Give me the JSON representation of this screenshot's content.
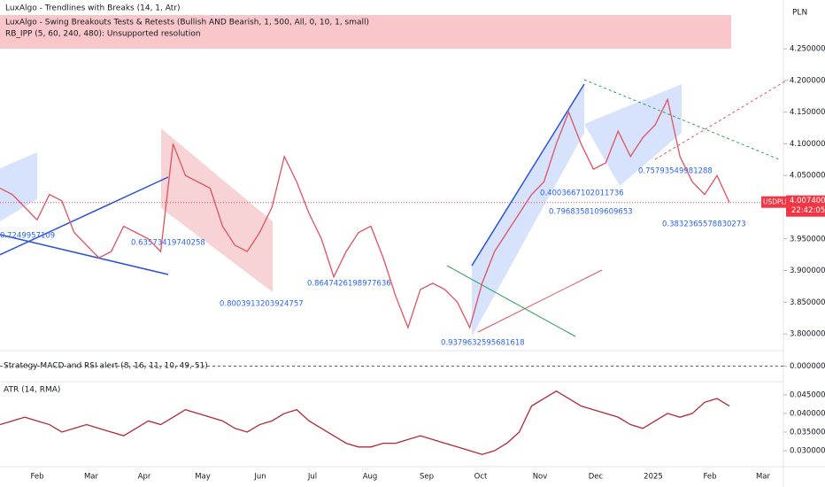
{
  "indicators": [
    "LuxAlgo - Trendlines with Breaks (14, 1, Atr)",
    "LuxAlgo - Swing Breakouts Tests & Retests (Bullish AND Bearish, 1, 500, All, 0, 10, 1, small)",
    "RB_IPP (5, 60, 240, 480): Unsupported resolution"
  ],
  "currency": "PLN",
  "symbol": "USDPLN",
  "countdown": "22:42:05",
  "time_axis": [
    "Feb",
    "Mar",
    "Apr",
    "May",
    "Jun",
    "Jul",
    "Aug",
    "Sep",
    "Oct",
    "Nov",
    "Dec",
    "2025",
    "Feb",
    "Mar"
  ],
  "annotations": [
    "0.7249957109",
    "0.63573419740258",
    "0.8003913203924757",
    "0.8647426198977636",
    "0.9379632595681618",
    "0.4003667102011736",
    "0.7968358109609653",
    "0.75793549981288",
    "0.3832365578830273"
  ],
  "chart_data": [
    {
      "type": "line",
      "color": "#e05260",
      "ylim": [
        3.775,
        4.327
      ],
      "yticks": [
        {
          "value": 4.25,
          "label": "4.250000"
        },
        {
          "value": 4.2,
          "label": "4.200000"
        },
        {
          "value": 4.15,
          "label": "4.150000"
        },
        {
          "value": 4.1,
          "label": "4.100000"
        },
        {
          "value": 4.05,
          "label": "4.050000"
        },
        {
          "value": 3.95,
          "label": "3.950000"
        },
        {
          "value": 3.9,
          "label": "3.900000"
        },
        {
          "value": 3.85,
          "label": "3.850000"
        },
        {
          "value": 3.8,
          "label": "3.800000"
        }
      ],
      "last_price": {
        "value": 4.0074,
        "label": "4.007400"
      },
      "values": [
        4.03,
        4.02,
        4.0,
        3.98,
        4.02,
        4.01,
        3.96,
        3.94,
        3.92,
        3.93,
        3.97,
        3.96,
        3.95,
        3.93,
        4.1,
        4.05,
        4.04,
        4.03,
        3.97,
        3.94,
        3.93,
        3.96,
        4.0,
        4.08,
        4.04,
        3.99,
        3.95,
        3.89,
        3.93,
        3.96,
        3.97,
        3.92,
        3.86,
        3.81,
        3.87,
        3.88,
        3.87,
        3.85,
        3.81,
        3.88,
        3.93,
        3.96,
        3.99,
        4.02,
        4.04,
        4.1,
        4.15,
        4.1,
        4.06,
        4.07,
        4.12,
        4.08,
        4.11,
        4.13,
        4.17,
        4.08,
        4.04,
        4.02,
        4.05,
        4.0074
      ]
    },
    {
      "type": "line",
      "title": "Strategy MACD and RSI alert (8, 16, 11, 10, 49, 51)",
      "ylim": [
        -0.01,
        0.01
      ],
      "yticks": [
        {
          "value": 0,
          "label": "0.000000"
        }
      ]
    },
    {
      "type": "line",
      "title": "ATR (14, RMA)",
      "color": "#b22833",
      "ylim": [
        0.0262,
        0.0483
      ],
      "yticks": [
        {
          "value": 0.045,
          "label": "0.045000"
        },
        {
          "value": 0.04,
          "label": "0.040000"
        },
        {
          "value": 0.035,
          "label": "0.035000"
        },
        {
          "value": 0.03,
          "label": "0.030000"
        }
      ],
      "values": [
        0.037,
        0.038,
        0.039,
        0.038,
        0.037,
        0.035,
        0.036,
        0.037,
        0.036,
        0.035,
        0.034,
        0.036,
        0.038,
        0.037,
        0.039,
        0.041,
        0.04,
        0.039,
        0.038,
        0.036,
        0.035,
        0.037,
        0.038,
        0.04,
        0.041,
        0.038,
        0.036,
        0.034,
        0.032,
        0.031,
        0.031,
        0.032,
        0.032,
        0.033,
        0.034,
        0.033,
        0.032,
        0.031,
        0.03,
        0.029,
        0.03,
        0.032,
        0.035,
        0.042,
        0.044,
        0.046,
        0.044,
        0.042,
        0.041,
        0.04,
        0.039,
        0.037,
        0.036,
        0.038,
        0.04,
        0.039,
        0.04,
        0.043,
        0.044,
        0.042
      ]
    }
  ]
}
